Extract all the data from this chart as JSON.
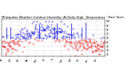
{
  "title": "Milwaukee Weather Outdoor Humidity  At Daily High  Temperature  (Past Year)",
  "title_fontsize": 2.8,
  "background_color": "#ffffff",
  "plot_bg_color": "#ffffff",
  "grid_color": "#bbbbbb",
  "ylim": [
    15,
    105
  ],
  "ytick_vals": [
    20,
    30,
    40,
    50,
    60,
    70,
    80,
    90,
    100
  ],
  "ytick_labels": [
    "20",
    "30",
    "40",
    "50",
    "60",
    "70",
    "80",
    "90",
    "100"
  ],
  "num_points": 365,
  "blue_color": "#0000dd",
  "red_color": "#dd0000",
  "mean_val": 58.0,
  "seed": 42,
  "spike_count": 8,
  "month_positions": [
    0,
    31,
    59,
    90,
    120,
    151,
    181,
    212,
    243,
    273,
    304,
    334
  ],
  "month_labels": [
    "Jan",
    "Feb",
    "Mar",
    "Apr",
    "May",
    "Jun",
    "Jul",
    "Aug",
    "Sep",
    "Oct",
    "Nov",
    "Dec"
  ]
}
